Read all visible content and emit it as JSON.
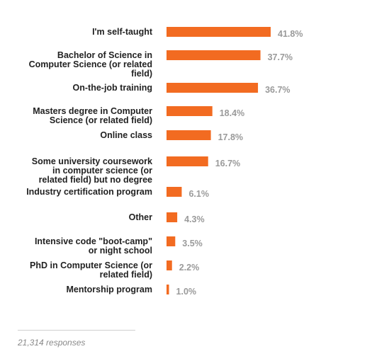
{
  "chart_data": {
    "type": "bar",
    "orientation": "horizontal",
    "categories": [
      [
        "I'm self-taught"
      ],
      [
        "Bachelor of Science in",
        "Computer Science (or related",
        "field)"
      ],
      [
        "On-the-job training"
      ],
      [
        "Masters degree in Computer",
        "Science (or related field)"
      ],
      [
        "Online class"
      ],
      [
        "Some university coursework",
        "in computer science (or",
        "related field) but no degree"
      ],
      [
        "Industry certification program"
      ],
      [
        "Other"
      ],
      [
        "Intensive code \"boot-camp\"",
        "or night school"
      ],
      [
        "PhD in Computer Science (or",
        "related field)"
      ],
      [
        "Mentorship program"
      ]
    ],
    "values": [
      41.8,
      37.7,
      36.7,
      18.4,
      17.8,
      16.7,
      6.1,
      4.3,
      3.5,
      2.2,
      1.0
    ],
    "value_labels": [
      "41.8%",
      "37.7%",
      "36.7%",
      "18.4%",
      "17.8%",
      "16.7%",
      "6.1%",
      "4.3%",
      "3.5%",
      "2.2%",
      "1.0%"
    ],
    "bar_color": "#f26b21",
    "label_color": "#222222",
    "value_color": "#9a9a9a",
    "grid": false,
    "legend": "none"
  },
  "footer": {
    "responses": "21,314 responses"
  }
}
